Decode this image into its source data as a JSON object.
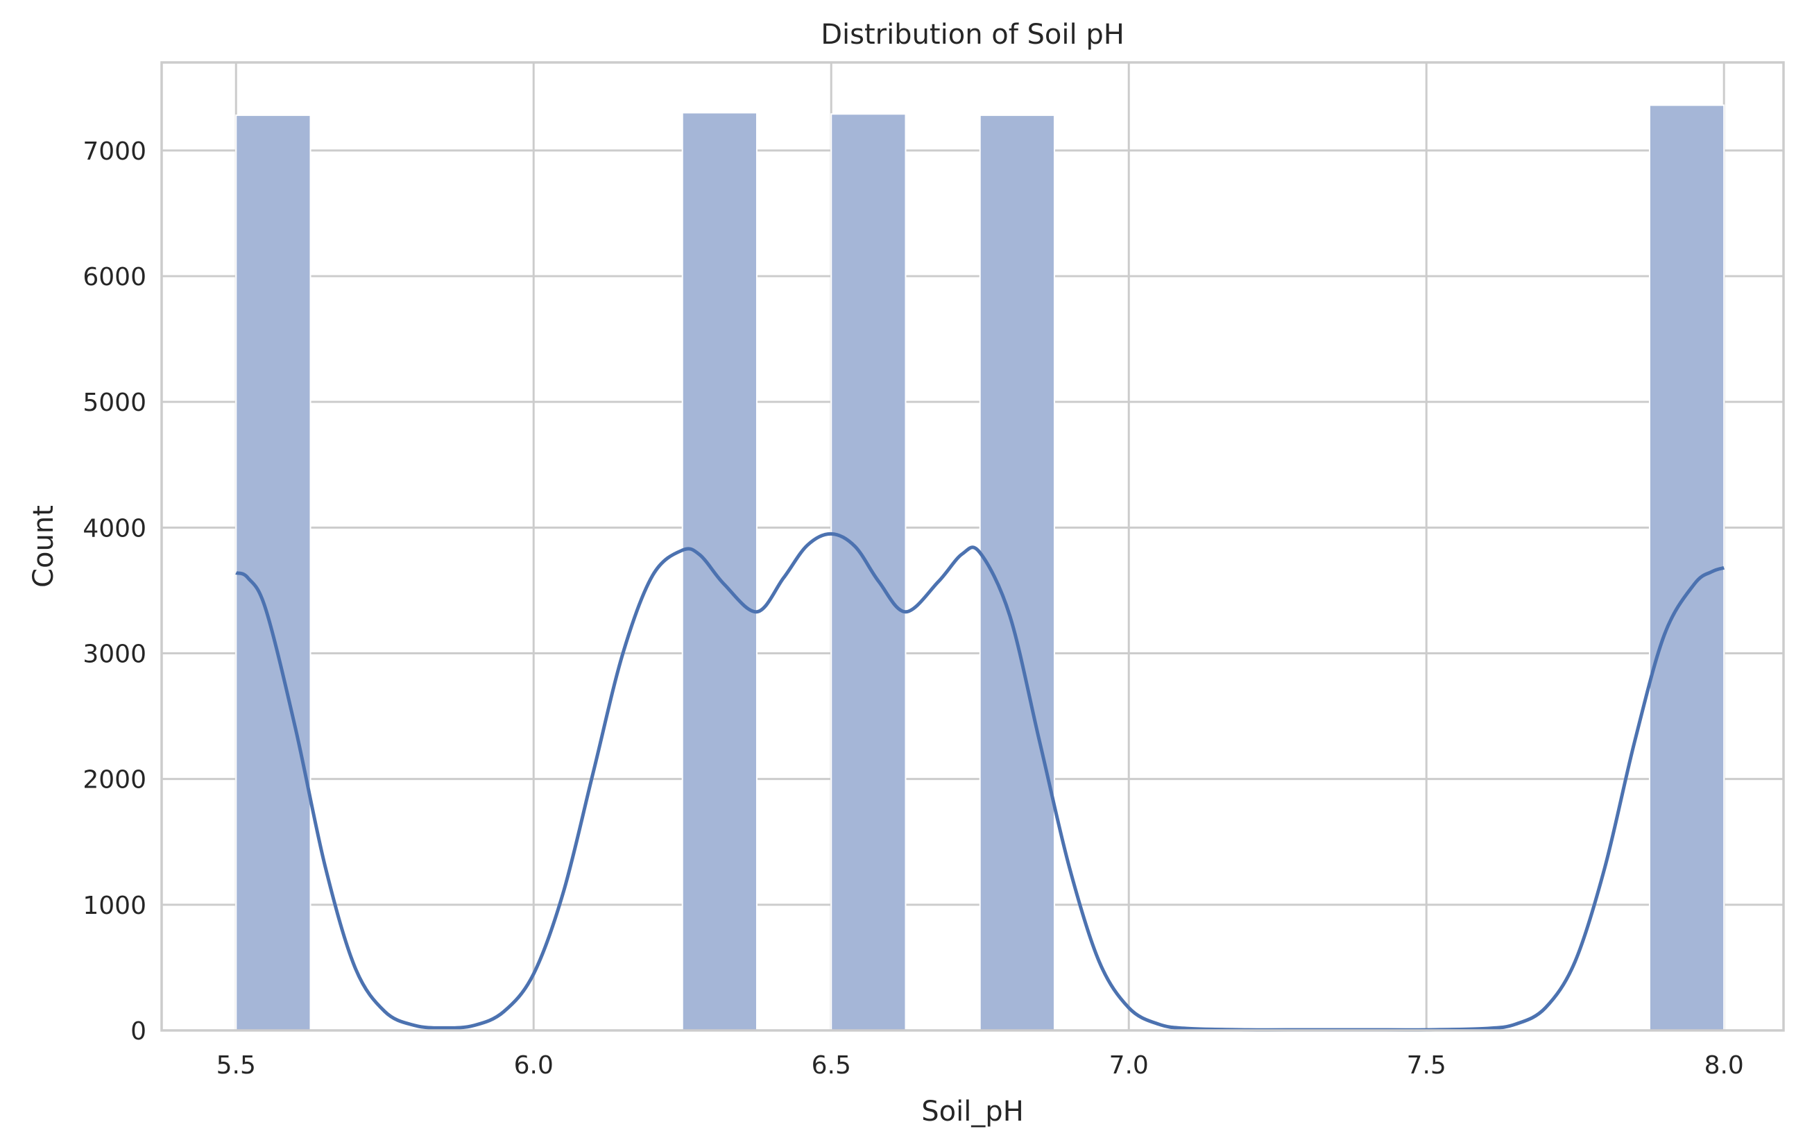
{
  "chart_data": {
    "type": "bar",
    "title": "Distribution of Soil pH",
    "xlabel": "Soil_pH",
    "ylabel": "Count",
    "xlim": [
      5.375,
      8.1
    ],
    "ylim": [
      0,
      7700
    ],
    "xticks": [
      5.5,
      6.0,
      6.5,
      7.0,
      7.5,
      8.0
    ],
    "xtick_labels": [
      "5.5",
      "6.0",
      "6.5",
      "7.0",
      "7.5",
      "8.0"
    ],
    "yticks": [
      0,
      1000,
      2000,
      3000,
      4000,
      5000,
      6000,
      7000
    ],
    "ytick_labels": [
      "0",
      "1000",
      "2000",
      "3000",
      "4000",
      "5000",
      "6000",
      "7000"
    ],
    "grid": true,
    "bars": [
      {
        "x0": 5.5,
        "x1": 5.625,
        "count": 7280
      },
      {
        "x0": 5.625,
        "x1": 5.75,
        "count": 0
      },
      {
        "x0": 5.75,
        "x1": 5.875,
        "count": 0
      },
      {
        "x0": 5.875,
        "x1": 6.0,
        "count": 0
      },
      {
        "x0": 6.0,
        "x1": 6.125,
        "count": 0
      },
      {
        "x0": 6.125,
        "x1": 6.25,
        "count": 0
      },
      {
        "x0": 6.25,
        "x1": 6.375,
        "count": 7300
      },
      {
        "x0": 6.375,
        "x1": 6.5,
        "count": 0
      },
      {
        "x0": 6.5,
        "x1": 6.625,
        "count": 7290
      },
      {
        "x0": 6.625,
        "x1": 6.75,
        "count": 0
      },
      {
        "x0": 6.75,
        "x1": 6.875,
        "count": 7280
      },
      {
        "x0": 6.875,
        "x1": 7.0,
        "count": 0
      },
      {
        "x0": 7.0,
        "x1": 7.125,
        "count": 0
      },
      {
        "x0": 7.125,
        "x1": 7.25,
        "count": 0
      },
      {
        "x0": 7.25,
        "x1": 7.375,
        "count": 0
      },
      {
        "x0": 7.375,
        "x1": 7.5,
        "count": 0
      },
      {
        "x0": 7.5,
        "x1": 7.625,
        "count": 0
      },
      {
        "x0": 7.625,
        "x1": 7.75,
        "count": 0
      },
      {
        "x0": 7.75,
        "x1": 7.875,
        "count": 0
      },
      {
        "x0": 7.875,
        "x1": 8.0,
        "count": 7360
      }
    ],
    "kde": {
      "x": [
        5.5,
        5.52,
        5.55,
        5.6,
        5.65,
        5.7,
        5.75,
        5.8,
        5.85,
        5.9,
        5.95,
        6.0,
        6.05,
        6.1,
        6.15,
        6.2,
        6.25,
        6.28,
        6.32,
        6.375,
        6.42,
        6.46,
        6.5,
        6.54,
        6.58,
        6.625,
        6.68,
        6.72,
        6.75,
        6.8,
        6.85,
        6.9,
        6.95,
        7.0,
        7.05,
        7.1,
        7.2,
        7.3,
        7.4,
        7.5,
        7.6,
        7.65,
        7.7,
        7.75,
        7.8,
        7.85,
        7.9,
        7.95,
        7.98,
        8.0
      ],
      "y": [
        3640,
        3600,
        3350,
        2400,
        1300,
        500,
        150,
        40,
        20,
        40,
        150,
        450,
        1100,
        2050,
        3000,
        3620,
        3820,
        3780,
        3550,
        3330,
        3600,
        3860,
        3950,
        3850,
        3570,
        3330,
        3570,
        3790,
        3800,
        3300,
        2300,
        1300,
        550,
        180,
        50,
        15,
        5,
        5,
        5,
        5,
        15,
        50,
        180,
        550,
        1300,
        2300,
        3150,
        3550,
        3650,
        3680
      ]
    },
    "colors": {
      "bar_fill": "#a5b6d7",
      "kde_line": "#4c72b0",
      "grid": "#cccccc",
      "frame": "#cccccc",
      "text": "#262626"
    }
  }
}
